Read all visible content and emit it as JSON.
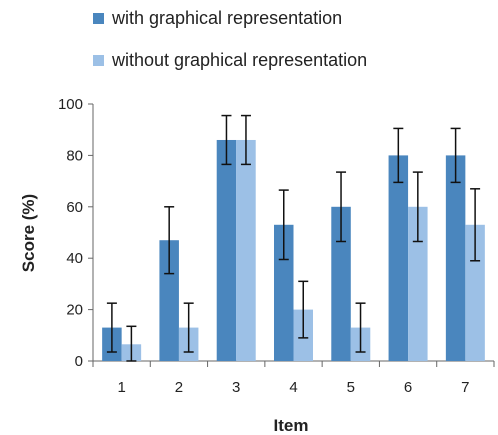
{
  "chart_data": {
    "type": "bar",
    "categories": [
      "1",
      "2",
      "3",
      "4",
      "5",
      "6",
      "7"
    ],
    "series": [
      {
        "name": "with graphical representation",
        "color": "#4a86be",
        "values": [
          13,
          47,
          86,
          53,
          60,
          80,
          80
        ],
        "error": [
          9.5,
          13,
          9.5,
          13.5,
          13.5,
          10.5,
          10.5
        ]
      },
      {
        "name": "without graphical representation",
        "color": "#9cc0e6",
        "values": [
          6.5,
          13,
          86,
          20,
          13,
          60,
          53
        ],
        "error": [
          7,
          9.5,
          9.5,
          11,
          9.5,
          13.5,
          14
        ]
      }
    ],
    "xlabel": "Item",
    "ylabel": "Score (%)",
    "ylim": [
      0,
      100
    ],
    "yticks": [
      0,
      20,
      40,
      60,
      80,
      100
    ],
    "grid": false,
    "legend_position": "top-left"
  }
}
